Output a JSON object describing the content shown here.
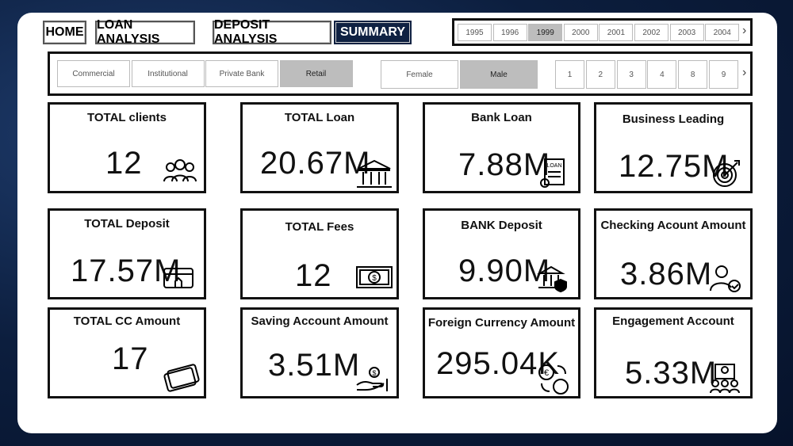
{
  "nav": {
    "tabs": [
      "HOME",
      "LOAN ANALYSIS",
      "DEPOSIT ANALYSIS",
      "SUMMARY"
    ],
    "selected": 3
  },
  "years": {
    "items": [
      "1995",
      "1996",
      "1999",
      "2000",
      "2001",
      "2002",
      "2003",
      "2004"
    ],
    "selected": 2
  },
  "segments": {
    "items": [
      "Commercial",
      "Institutional",
      "Private Bank",
      "Retail"
    ],
    "selected": 3
  },
  "genders": {
    "items": [
      "Female",
      "Male"
    ],
    "selected": 1
  },
  "numbers": {
    "items": [
      "1",
      "2",
      "3",
      "4",
      "8",
      "9"
    ]
  },
  "cards": [
    {
      "title": "TOTAL clients",
      "value": "12"
    },
    {
      "title": "TOTAL Loan",
      "value": "20.67M"
    },
    {
      "title": "Bank Loan",
      "value": "7.88M"
    },
    {
      "title": "Business Leading",
      "value": "12.75M"
    },
    {
      "title": "TOTAL Deposit",
      "value": "17.57M"
    },
    {
      "title": "TOTAL Fees",
      "value": "12"
    },
    {
      "title": "BANK Deposit",
      "value": "9.90M"
    },
    {
      "title": "Checking Acount Amount",
      "value": "3.86M"
    },
    {
      "title": "TOTAL CC Amount",
      "value": "17"
    },
    {
      "title": "Saving Account Amount",
      "value": "3.51M"
    },
    {
      "title": "Foreign Currency Amount",
      "value": "295.04K"
    },
    {
      "title": "Engagement Account",
      "value": "5.33M"
    }
  ]
}
